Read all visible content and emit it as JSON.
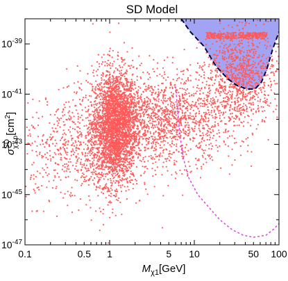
{
  "chart_data": {
    "type": "scatter",
    "title": "SD Model",
    "xlabel": {
      "main": "M",
      "sub": "χ1",
      "unit": "[GeV]"
    },
    "ylabel": {
      "main": "σ",
      "sup": "SD",
      "sub": "χ1 p",
      "unit": "[cm",
      "unit_sup": "2",
      "unit_close": "]"
    },
    "xscale": "log",
    "yscale": "log",
    "xlim": [
      0.1,
      100
    ],
    "ylim": [
      1e-47,
      1e-38
    ],
    "x_ticks": [
      {
        "value": 0.1,
        "label": "0.1"
      },
      {
        "value": 0.5,
        "label": "0.5"
      },
      {
        "value": 1,
        "label": "1"
      },
      {
        "value": 5,
        "label": "5"
      },
      {
        "value": 10,
        "label": "10"
      },
      {
        "value": 50,
        "label": "50"
      },
      {
        "value": 100,
        "label": "100"
      }
    ],
    "y_ticks": [
      {
        "value": 1e-39,
        "base": "10",
        "exp": "-39"
      },
      {
        "value": 1e-41,
        "base": "10",
        "exp": "-41"
      },
      {
        "value": 1e-43,
        "base": "10",
        "exp": "-43"
      },
      {
        "value": 1e-45,
        "base": "10",
        "exp": "-45"
      },
      {
        "value": 1e-47,
        "base": "10",
        "exp": "-47"
      }
    ],
    "excluded_region": {
      "color": "#8c8cf0",
      "border_color": "#000044",
      "boundary": [
        [
          7.0,
          1e-38
        ],
        [
          9.0,
          3e-39
        ],
        [
          13,
          8e-40
        ],
        [
          18,
          1.3e-40
        ],
        [
          25,
          4e-41
        ],
        [
          32,
          2.2e-41
        ],
        [
          42,
          1.6e-41
        ],
        [
          52,
          1.6e-41
        ],
        [
          62,
          3e-41
        ],
        [
          72,
          1e-40
        ],
        [
          84,
          6e-40
        ],
        [
          100,
          3e-39
        ]
      ]
    },
    "projection_curve": {
      "color": "#e040e0",
      "points": [
        [
          6.0,
          2e-41
        ],
        [
          6.4,
          2e-42
        ],
        [
          6.8,
          2e-43
        ],
        [
          7.4,
          3e-44
        ],
        [
          8.5,
          5e-45
        ],
        [
          11,
          1e-45
        ],
        [
          15,
          3e-46
        ],
        [
          20,
          1e-46
        ],
        [
          28,
          4e-47
        ],
        [
          38,
          2.4e-47
        ],
        [
          50,
          2e-47
        ],
        [
          70,
          2.4e-47
        ],
        [
          85,
          4e-47
        ],
        [
          100,
          7e-47
        ]
      ]
    },
    "series": [
      {
        "color": "#ff5a5a",
        "clusters": [
          {
            "x_log_mean": 0.06,
            "x_log_sd": 0.13,
            "y_log_mean": -42.3,
            "y_log_sd": 1.15,
            "n": 2600
          },
          {
            "x_log_mean": -0.35,
            "x_log_sd": 0.38,
            "y_log_mean": -43.3,
            "y_log_sd": 1.0,
            "n": 650
          },
          {
            "x_log_mean": 0.6,
            "x_log_sd": 0.45,
            "y_log_mean": -42.0,
            "y_log_sd": 0.9,
            "n": 1700
          },
          {
            "x_log_mean": 1.55,
            "x_log_sd": 0.22,
            "y_log_mean": -40.3,
            "y_log_sd": 0.9,
            "n": 900
          }
        ]
      }
    ]
  }
}
